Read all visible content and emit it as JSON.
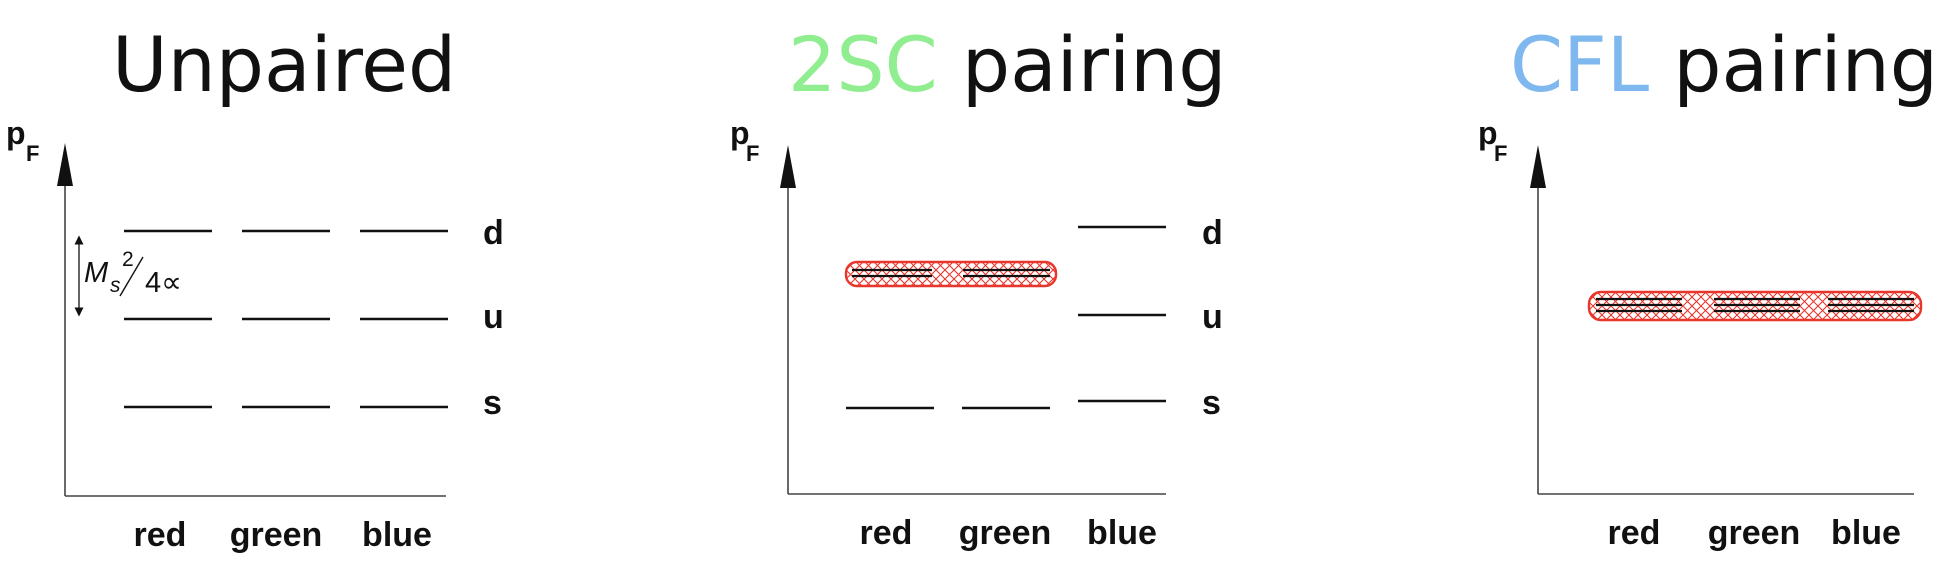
{
  "panels": [
    {
      "title_highlight": "",
      "title_rest": "Unpaired",
      "axis_label": "p",
      "axis_sub": "F",
      "columns": [
        "red",
        "green",
        "blue"
      ],
      "levels": [
        "d",
        "u",
        "s"
      ],
      "gap_label": "M",
      "gap_sub": "s",
      "gap_sup": "2",
      "gap_den": "4∝"
    },
    {
      "title_highlight": "2SC",
      "title_rest": " pairing",
      "axis_label": "p",
      "axis_sub": "F",
      "columns": [
        "red",
        "green",
        "blue"
      ],
      "levels": [
        "d",
        "u",
        "s"
      ]
    },
    {
      "title_highlight": "CFL",
      "title_rest": " pairing",
      "axis_label": "p",
      "axis_sub": "F",
      "columns": [
        "red",
        "green",
        "blue"
      ]
    }
  ],
  "colors": {
    "text": "#111111",
    "green_highlight": "#90ee90",
    "blue_highlight": "#7fb8ee",
    "pairing_band": "#e8362c"
  }
}
